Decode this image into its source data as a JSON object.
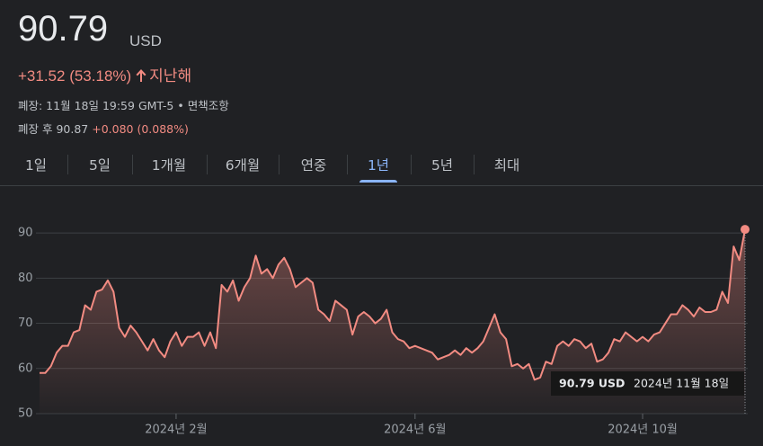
{
  "header": {
    "price": "90.79",
    "currency": "USD",
    "change": "+31.52 (53.18%)",
    "period": "지난해",
    "closed": "폐장: 11월 18일 19:59 GMT-5 •",
    "disclaimer": "면책조항",
    "after_hours": "폐장 후 90.87",
    "after_change": "+0.080 (0.088%)"
  },
  "tabs": [
    "1일",
    "5일",
    "1개월",
    "6개월",
    "연중",
    "1년",
    "5년",
    "최대"
  ],
  "selected_tab": 5,
  "chart_data": {
    "type": "line",
    "color": "#f28b82",
    "values": [
      59,
      59,
      60.5,
      63.5,
      65,
      65,
      68,
      68.5,
      74,
      73,
      77,
      77.5,
      79.5,
      77,
      69,
      67,
      69.5,
      68,
      66,
      64,
      66.5,
      64,
      62.5,
      66,
      68,
      65,
      67,
      67,
      68,
      65,
      68,
      64.5,
      78.5,
      77,
      79.5,
      75,
      78,
      80,
      85,
      81,
      82,
      80,
      83,
      84.5,
      82,
      78,
      79,
      80,
      79,
      73,
      72,
      70.5,
      75,
      74,
      73,
      67.5,
      71.5,
      72.5,
      71.5,
      70,
      71,
      73,
      68,
      66.5,
      66,
      64.5,
      65,
      64.5,
      64,
      63.5,
      62,
      62.5,
      63,
      64,
      63,
      64.5,
      63.5,
      64.5,
      66,
      69,
      72,
      68,
      66.5,
      60.5,
      61,
      60,
      61,
      57.5,
      58,
      61.5,
      61,
      65,
      66,
      65,
      66.5,
      66,
      64.5,
      65.5,
      61.5,
      62,
      63.5,
      66.5,
      66,
      68,
      67,
      66,
      67,
      66,
      67.5,
      68,
      70,
      72,
      72,
      74,
      73,
      71.5,
      73.5,
      72.5,
      72.5,
      73,
      77,
      74.5,
      87,
      84,
      90.79
    ],
    "xlim": [
      0,
      124
    ],
    "xticks": [
      {
        "value": 24,
        "label": "2024년 2월"
      },
      {
        "value": 66,
        "label": "2024년 6월"
      },
      {
        "value": 106,
        "label": "2024년 10월"
      }
    ],
    "ylim": [
      50,
      95
    ],
    "yticks": [
      50,
      60,
      70,
      80,
      90
    ],
    "grid": true,
    "tooltip": {
      "value": "90.79 USD",
      "date": "2024년 11월 18일"
    }
  }
}
